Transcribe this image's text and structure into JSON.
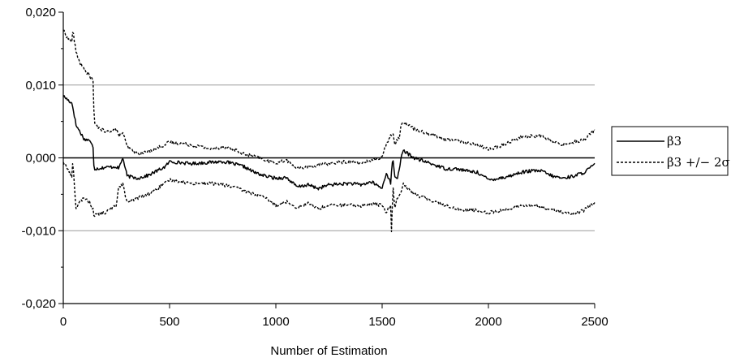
{
  "chart_data": {
    "type": "line",
    "title": "",
    "xlabel": "Number of Estimation",
    "ylabel": "",
    "xlim": [
      0,
      2500
    ],
    "ylim": [
      -0.02,
      0.02
    ],
    "x_ticks": [
      0,
      500,
      1000,
      1500,
      2000,
      2500
    ],
    "x_tick_labels": [
      "0",
      "500",
      "1000",
      "1500",
      "2000",
      "2500"
    ],
    "y_ticks": [
      -0.02,
      -0.01,
      0.0,
      0.01,
      0.02
    ],
    "y_tick_labels": [
      "-0,020",
      "-0,010",
      "0,000",
      "0,010",
      "0,020"
    ],
    "grid": "horizontal gridlines at -0,010 and 0,010",
    "legend_position": "right",
    "series": [
      {
        "name": "β3",
        "style": "solid",
        "color": "#000000",
        "x": [
          0,
          20,
          40,
          45,
          60,
          80,
          100,
          120,
          130,
          140,
          145,
          150,
          200,
          250,
          260,
          280,
          300,
          350,
          400,
          480,
          500,
          600,
          700,
          750,
          800,
          850,
          900,
          950,
          1000,
          1050,
          1100,
          1150,
          1200,
          1250,
          1300,
          1350,
          1400,
          1450,
          1500,
          1520,
          1540,
          1550,
          1560,
          1570,
          1580,
          1590,
          1600,
          1650,
          1700,
          1750,
          1800,
          1850,
          1900,
          1950,
          2000,
          2050,
          2100,
          2150,
          2200,
          2250,
          2300,
          2350,
          2400,
          2450,
          2500
        ],
        "y": [
          0.0085,
          0.008,
          0.0075,
          0.007,
          0.0045,
          0.0035,
          0.0025,
          0.0025,
          0.002,
          0.0015,
          -0.0015,
          -0.0015,
          -0.0013,
          -0.0012,
          -0.0015,
          0.0,
          -0.0025,
          -0.0028,
          -0.0024,
          -0.0012,
          -0.0005,
          -0.0008,
          -0.0006,
          -0.0005,
          -0.0008,
          -0.0012,
          -0.002,
          -0.0025,
          -0.0028,
          -0.0027,
          -0.004,
          -0.0037,
          -0.0042,
          -0.0037,
          -0.0036,
          -0.0035,
          -0.0037,
          -0.0033,
          -0.0042,
          -0.002,
          -0.0035,
          0.0,
          -0.0025,
          -0.003,
          -0.0015,
          0.0,
          0.001,
          0.0,
          -0.0005,
          -0.001,
          -0.0015,
          -0.0015,
          -0.0018,
          -0.002,
          -0.003,
          -0.0028,
          -0.0025,
          -0.002,
          -0.0018,
          -0.0018,
          -0.0025,
          -0.0028,
          -0.0025,
          -0.002,
          -0.0009
        ]
      },
      {
        "name": "β3 +/− 2σ",
        "style": "dashed",
        "color": "#000000",
        "band": "upper",
        "x": [
          0,
          20,
          40,
          45,
          60,
          80,
          100,
          120,
          130,
          140,
          145,
          150,
          200,
          250,
          260,
          280,
          300,
          350,
          400,
          480,
          500,
          600,
          700,
          750,
          800,
          850,
          900,
          950,
          1000,
          1050,
          1100,
          1150,
          1200,
          1250,
          1300,
          1350,
          1400,
          1450,
          1500,
          1520,
          1540,
          1550,
          1560,
          1570,
          1580,
          1590,
          1600,
          1650,
          1700,
          1750,
          1800,
          1850,
          1900,
          1950,
          2000,
          2050,
          2100,
          2150,
          2200,
          2250,
          2300,
          2350,
          2400,
          2450,
          2500
        ],
        "y": [
          0.0175,
          0.0165,
          0.016,
          0.0175,
          0.0145,
          0.013,
          0.012,
          0.0115,
          0.011,
          0.0105,
          0.0055,
          0.0045,
          0.0035,
          0.004,
          0.003,
          0.0035,
          0.0015,
          0.0005,
          0.0009,
          0.0018,
          0.0022,
          0.0018,
          0.0012,
          0.0015,
          0.0012,
          0.0005,
          0.0002,
          -0.0003,
          -0.0007,
          -0.0003,
          -0.0015,
          -0.0012,
          -0.001,
          -0.0008,
          -0.0006,
          -0.0005,
          -0.0008,
          -0.0003,
          0.0,
          0.002,
          0.003,
          0.0035,
          0.002,
          0.0025,
          0.0028,
          0.0045,
          0.005,
          0.004,
          0.0035,
          0.003,
          0.0025,
          0.0025,
          0.002,
          0.0018,
          0.0012,
          0.0015,
          0.0022,
          0.0028,
          0.003,
          0.003,
          0.0022,
          0.0018,
          0.0022,
          0.0025,
          0.0038
        ]
      },
      {
        "name": "",
        "style": "dashed",
        "color": "#000000",
        "band": "lower",
        "x": [
          0,
          20,
          40,
          45,
          60,
          80,
          100,
          120,
          130,
          140,
          145,
          150,
          200,
          250,
          260,
          280,
          300,
          350,
          400,
          480,
          500,
          600,
          700,
          750,
          800,
          850,
          900,
          950,
          1000,
          1050,
          1100,
          1150,
          1200,
          1250,
          1300,
          1350,
          1400,
          1450,
          1500,
          1520,
          1540,
          1545,
          1550,
          1560,
          1570,
          1580,
          1590,
          1600,
          1650,
          1700,
          1750,
          1800,
          1850,
          1900,
          1950,
          2000,
          2050,
          2100,
          2150,
          2200,
          2250,
          2300,
          2350,
          2400,
          2450,
          2500
        ],
        "y": [
          -0.0005,
          -0.0015,
          -0.0025,
          -0.0005,
          -0.007,
          -0.006,
          -0.0055,
          -0.006,
          -0.0065,
          -0.007,
          -0.008,
          -0.0078,
          -0.0075,
          -0.0065,
          -0.004,
          -0.0035,
          -0.0062,
          -0.0055,
          -0.005,
          -0.0035,
          -0.003,
          -0.0035,
          -0.0035,
          -0.0037,
          -0.004,
          -0.0045,
          -0.005,
          -0.0055,
          -0.0065,
          -0.006,
          -0.0068,
          -0.0062,
          -0.007,
          -0.0065,
          -0.0065,
          -0.0065,
          -0.0066,
          -0.0063,
          -0.0065,
          -0.0075,
          -0.0065,
          -0.011,
          -0.0035,
          -0.007,
          -0.0055,
          -0.005,
          -0.0045,
          -0.0035,
          -0.005,
          -0.0055,
          -0.006,
          -0.0065,
          -0.007,
          -0.0072,
          -0.0072,
          -0.0075,
          -0.0073,
          -0.007,
          -0.0065,
          -0.0065,
          -0.0068,
          -0.007,
          -0.0075,
          -0.0078,
          -0.0072,
          -0.006
        ]
      }
    ],
    "legend": [
      {
        "label": "β3",
        "style": "solid"
      },
      {
        "label": "β3 +/− 2σ",
        "style": "dashed"
      }
    ]
  }
}
